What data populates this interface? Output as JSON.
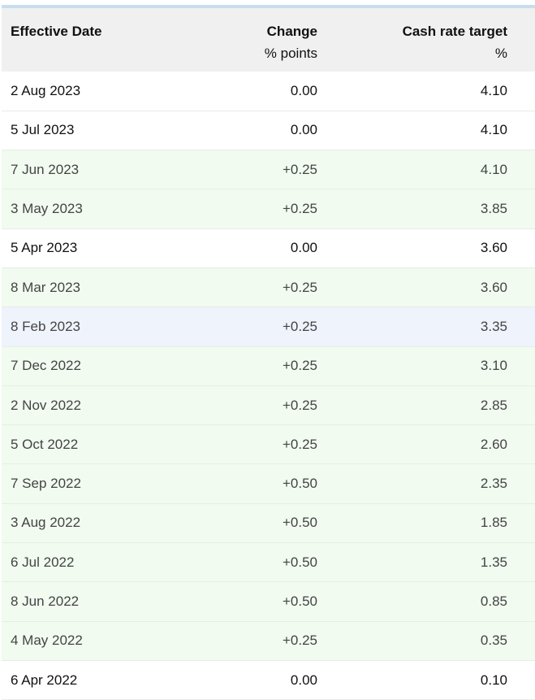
{
  "table": {
    "headers": {
      "date": "Effective Date",
      "change": "Change",
      "change_unit": "% points",
      "rate": "Cash rate target",
      "rate_unit": "%"
    },
    "rows": [
      {
        "date": "2 Aug 2023",
        "change": "0.00",
        "rate": "4.10",
        "style": "plain"
      },
      {
        "date": "5 Jul 2023",
        "change": "0.00",
        "rate": "4.10",
        "style": "plain"
      },
      {
        "date": "7 Jun 2023",
        "change": "+0.25",
        "rate": "4.10",
        "style": "inc"
      },
      {
        "date": "3 May 2023",
        "change": "+0.25",
        "rate": "3.85",
        "style": "inc"
      },
      {
        "date": "5 Apr 2023",
        "change": "0.00",
        "rate": "3.60",
        "style": "plain"
      },
      {
        "date": "8 Mar 2023",
        "change": "+0.25",
        "rate": "3.60",
        "style": "inc"
      },
      {
        "date": "8 Feb 2023",
        "change": "+0.25",
        "rate": "3.35",
        "style": "hl"
      },
      {
        "date": "7 Dec 2022",
        "change": "+0.25",
        "rate": "3.10",
        "style": "inc"
      },
      {
        "date": "2 Nov 2022",
        "change": "+0.25",
        "rate": "2.85",
        "style": "inc"
      },
      {
        "date": "5 Oct 2022",
        "change": "+0.25",
        "rate": "2.60",
        "style": "inc"
      },
      {
        "date": "7 Sep 2022",
        "change": "+0.50",
        "rate": "2.35",
        "style": "inc"
      },
      {
        "date": "3 Aug 2022",
        "change": "+0.50",
        "rate": "1.85",
        "style": "inc"
      },
      {
        "date": "6 Jul 2022",
        "change": "+0.50",
        "rate": "1.35",
        "style": "inc"
      },
      {
        "date": "8 Jun 2022",
        "change": "+0.50",
        "rate": "0.85",
        "style": "inc"
      },
      {
        "date": "4 May 2022",
        "change": "+0.25",
        "rate": "0.35",
        "style": "inc"
      },
      {
        "date": "6 Apr 2022",
        "change": "0.00",
        "rate": "0.10",
        "style": "plain"
      }
    ]
  },
  "colors": {
    "header_bg": "#f0f0f0",
    "top_border": "#c8ddef",
    "increase_row_bg": "#f1fbf0",
    "hover_row_bg": "#eff3fc",
    "plain_row_bg": "#ffffff"
  }
}
